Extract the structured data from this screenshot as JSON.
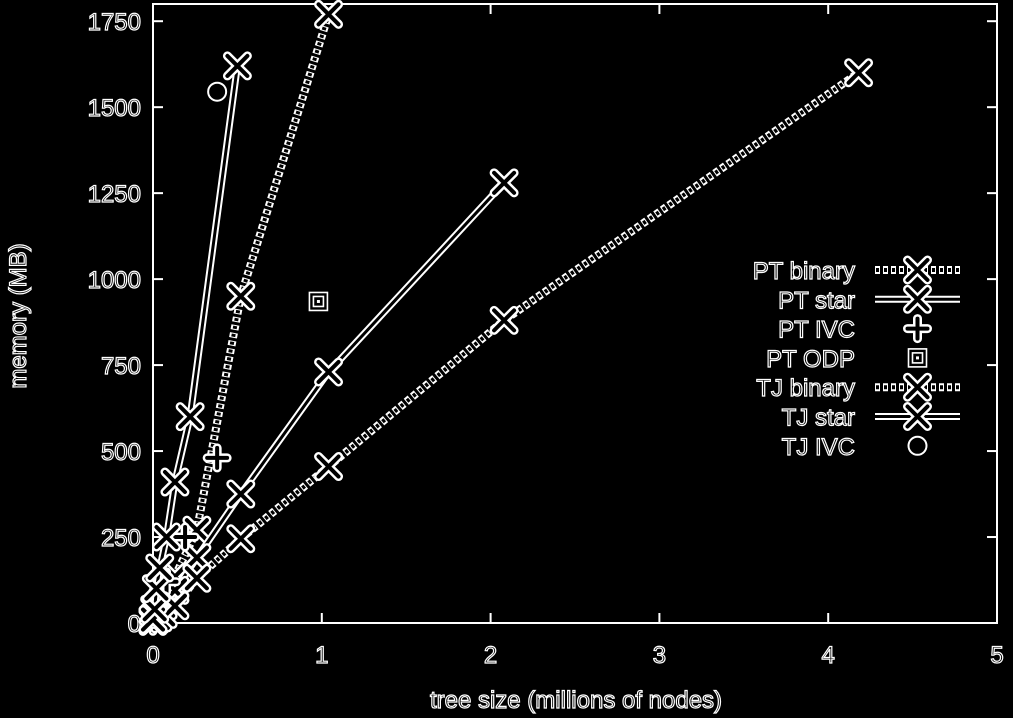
{
  "chart_data": {
    "type": "line",
    "title": "",
    "xlabel": "tree size (millions of nodes)",
    "ylabel": "memory (MB)",
    "xlim": [
      0,
      5
    ],
    "ylim": [
      0,
      1800
    ],
    "xticks": [
      0,
      1,
      2,
      3,
      4,
      5
    ],
    "yticks": [
      0,
      250,
      500,
      750,
      1000,
      1250,
      1500,
      1750
    ],
    "grid": false,
    "legend_position": "right",
    "colors": {
      "background": "#000000",
      "foreground": "#ffffff"
    },
    "series": [
      {
        "name": "PT binary",
        "line": "dotted",
        "marker": "x",
        "x": [
          0.0,
          0.01,
          0.03,
          0.06,
          0.13,
          0.26,
          0.52,
          1.04
        ],
        "y": [
          8,
          15,
          32,
          65,
          135,
          270,
          950,
          1770
        ]
      },
      {
        "name": "PT star",
        "line": "solid",
        "marker": "x",
        "x": [
          0.0,
          0.01,
          0.02,
          0.04,
          0.06,
          0.13,
          0.26,
          0.52,
          1.04,
          2.08
        ],
        "y": [
          5,
          10,
          20,
          40,
          50,
          95,
          190,
          375,
          730,
          1280
        ]
      },
      {
        "name": "PT IVC",
        "line": "none",
        "marker": "plus",
        "x": [
          0.0,
          0.01,
          0.02,
          0.04,
          0.08,
          0.19,
          0.38
        ],
        "y": [
          5,
          12,
          25,
          60,
          120,
          250,
          480
        ]
      },
      {
        "name": "PT ODP",
        "line": "none",
        "marker": "square-dot",
        "x": [
          0.98
        ],
        "y": [
          935
        ]
      },
      {
        "name": "TJ binary",
        "line": "dotted",
        "marker": "x",
        "x": [
          0.0,
          0.01,
          0.03,
          0.06,
          0.13,
          0.26,
          0.52,
          1.04,
          2.08,
          4.18
        ],
        "y": [
          5,
          10,
          15,
          25,
          50,
          130,
          245,
          455,
          880,
          1600
        ]
      },
      {
        "name": "TJ star",
        "line": "solid",
        "marker": "x",
        "x": [
          0.0,
          0.01,
          0.02,
          0.04,
          0.08,
          0.13,
          0.22,
          0.5
        ],
        "y": [
          10,
          40,
          100,
          160,
          250,
          410,
          600,
          1620
        ]
      },
      {
        "name": "TJ IVC",
        "line": "none",
        "marker": "circle",
        "x": [
          0.38
        ],
        "y": [
          1545
        ]
      }
    ]
  }
}
